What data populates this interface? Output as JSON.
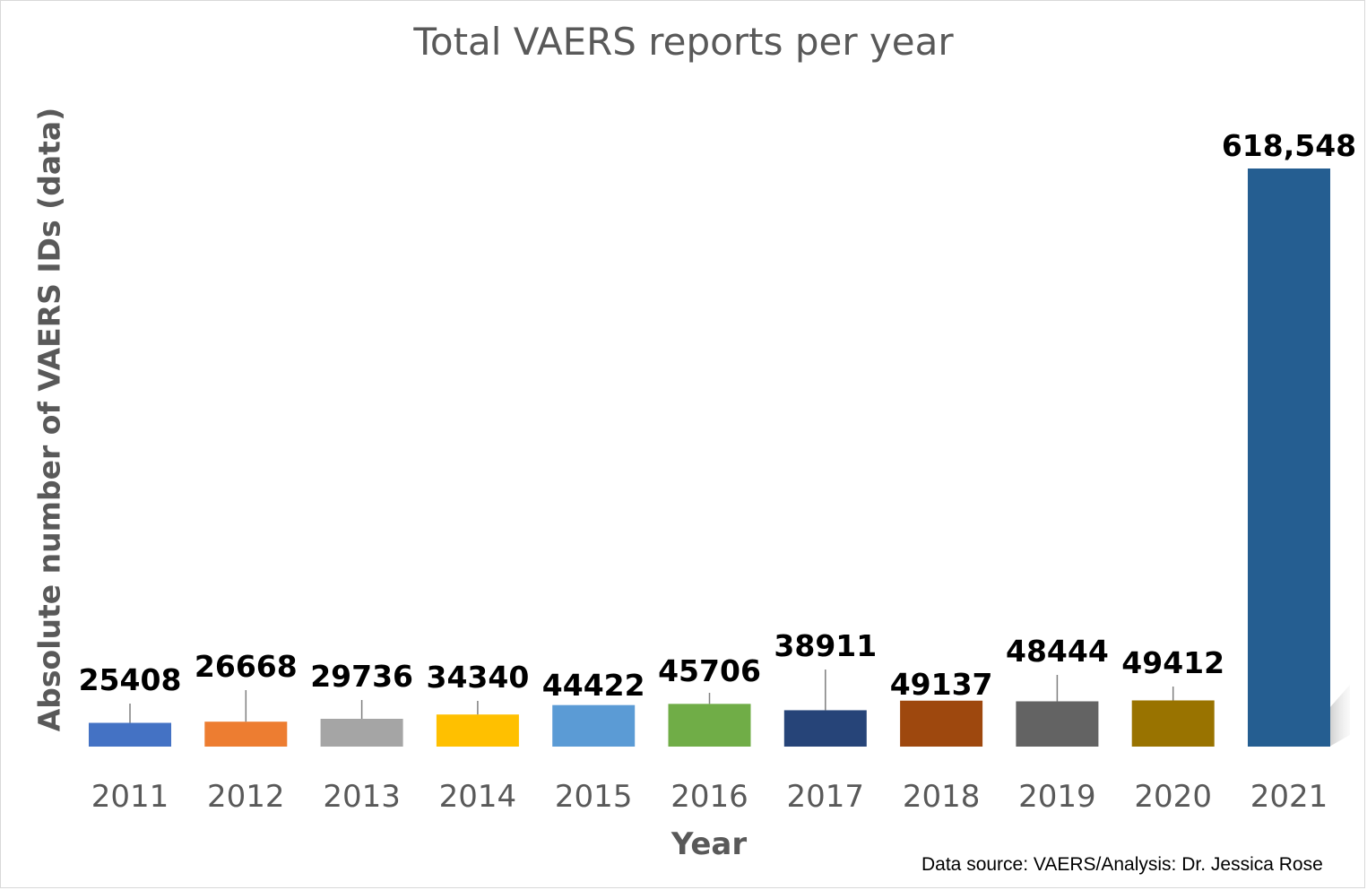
{
  "chart_data": {
    "type": "bar",
    "title": "Total VAERS reports per year",
    "xlabel": "Year",
    "ylabel": "Absolute number of VAERS IDs (data)",
    "categories": [
      "2011",
      "2012",
      "2013",
      "2014",
      "2015",
      "2016",
      "2017",
      "2018",
      "2019",
      "2020",
      "2021"
    ],
    "values": [
      25408,
      26668,
      29736,
      34340,
      44422,
      45706,
      38911,
      49137,
      48444,
      49412,
      618548
    ],
    "data_labels": [
      "25408",
      "26668",
      "29736",
      "34340",
      "44422",
      "45706",
      "38911",
      "49137",
      "48444",
      "49412",
      "618,548"
    ],
    "colors": [
      "#4472c4",
      "#ed7d31",
      "#a5a5a5",
      "#ffc000",
      "#5b9bd5",
      "#70ad47",
      "#264478",
      "#9e480e",
      "#636363",
      "#997300",
      "#255e91"
    ],
    "ylim": [
      0,
      618548
    ],
    "grid": false,
    "legend": "none"
  },
  "source_note": "Data source: VAERS/Analysis: Dr. Jessica Rose"
}
